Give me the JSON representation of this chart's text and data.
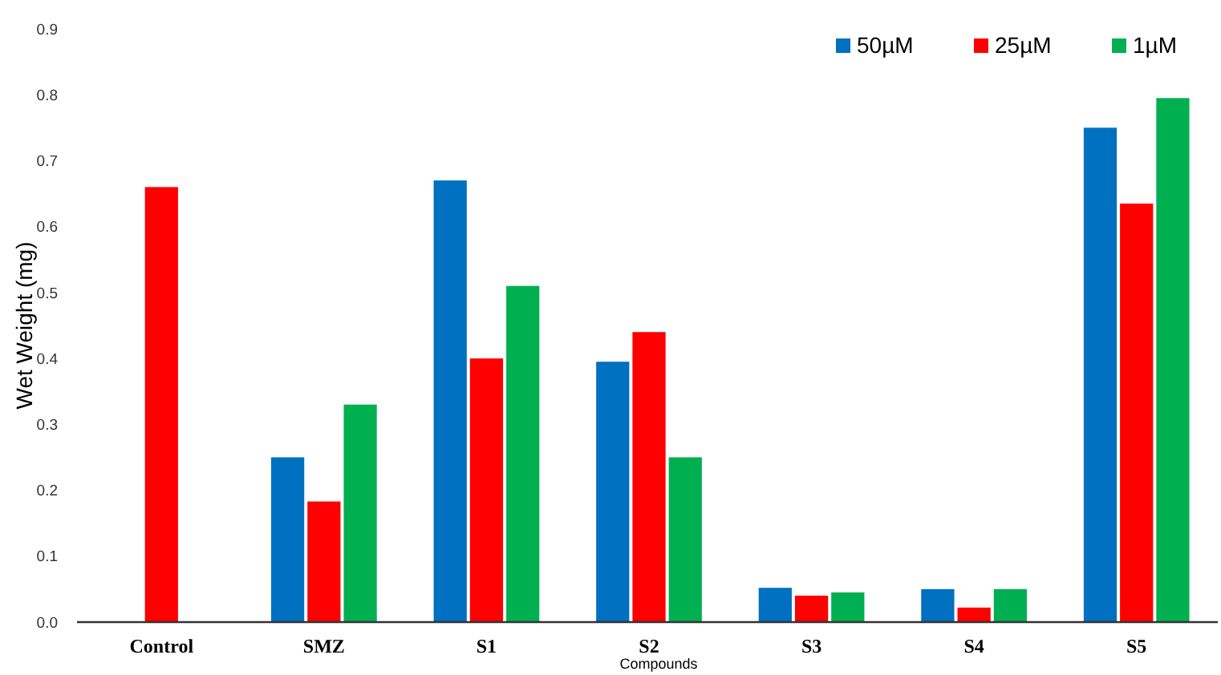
{
  "chart_data": {
    "type": "bar",
    "xlabel": "Compounds",
    "ylabel": "Wet Weight (mg)",
    "categories": [
      "Control",
      "SMZ",
      "S1",
      "S2",
      "S3",
      "S4",
      "S5"
    ],
    "series": [
      {
        "name": "50µM",
        "color": "#0070c0",
        "values": [
          null,
          0.25,
          0.67,
          0.395,
          0.052,
          0.05,
          0.75
        ]
      },
      {
        "name": "25µM",
        "color": "#ff0000",
        "values": [
          0.66,
          0.183,
          0.4,
          0.44,
          0.04,
          0.022,
          0.635
        ]
      },
      {
        "name": "1µM",
        "color": "#00b050",
        "values": [
          null,
          0.33,
          0.51,
          0.25,
          0.045,
          0.05,
          0.795
        ]
      }
    ],
    "ylim": [
      0,
      0.9
    ],
    "yticks": [
      {
        "value": 0,
        "label": "0.0"
      },
      0.1,
      0.2,
      0.3,
      0.4,
      0.5,
      0.6,
      0.7,
      0.8,
      0.9
    ],
    "grid": false,
    "legend": "top right"
  }
}
